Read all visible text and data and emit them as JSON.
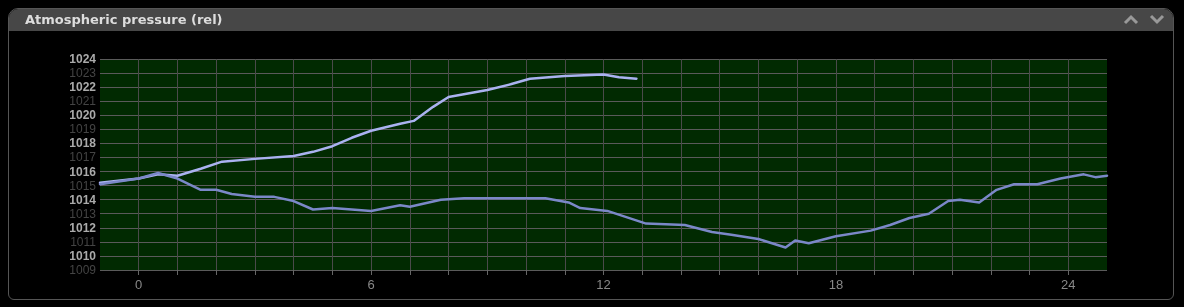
{
  "chart_data": {
    "type": "line",
    "title": "Atmospheric pressure (rel)",
    "xlim": [
      -1,
      25
    ],
    "xticks": [
      0,
      {
        "value": 1,
        "label": null
      },
      {
        "value": 2,
        "label": null
      },
      {
        "value": 3,
        "label": null
      },
      {
        "value": 4,
        "label": null
      },
      {
        "value": 5,
        "label": null
      },
      6,
      {
        "value": 7,
        "label": null
      },
      {
        "value": 8,
        "label": null
      },
      {
        "value": 9,
        "label": null
      },
      {
        "value": 10,
        "label": null
      },
      {
        "value": 11,
        "label": null
      },
      12,
      {
        "value": 13,
        "label": null
      },
      {
        "value": 14,
        "label": null
      },
      {
        "value": 15,
        "label": null
      },
      {
        "value": 16,
        "label": null
      },
      {
        "value": 17,
        "label": null
      },
      18,
      {
        "value": 19,
        "label": null
      },
      {
        "value": 20,
        "label": null
      },
      {
        "value": 21,
        "label": null
      },
      {
        "value": 22,
        "label": null
      },
      {
        "value": 23,
        "label": null
      },
      24
    ],
    "ylim": [
      1009,
      1024
    ],
    "yticks": [
      1009,
      1010,
      1011,
      1012,
      1013,
      1014,
      1015,
      1016,
      1017,
      1018,
      1019,
      1020,
      1021,
      1022,
      1023,
      1024
    ],
    "grid": true,
    "marker": "none",
    "line_style": "solid",
    "series": [
      {
        "color": "#aab2f0",
        "x": [
          -1,
          0,
          0.5,
          1,
          1.6,
          2.15,
          3,
          4,
          4.5,
          5,
          5.5,
          6,
          6.75,
          7.1,
          7.6,
          8,
          9,
          9.6,
          10.1,
          11,
          12,
          12.4,
          12.85
        ],
        "values": [
          1015.2,
          1015.5,
          1015.8,
          1015.7,
          1016.2,
          1016.7,
          1016.9,
          1017.1,
          1017.4,
          1017.8,
          1018.4,
          1018.9,
          1019.4,
          1019.6,
          1020.6,
          1021.3,
          1021.8,
          1022.2,
          1022.6,
          1022.8,
          1022.9,
          1022.7,
          1022.6
        ]
      },
      {
        "color": "#7b88c8",
        "x": [
          -1,
          0,
          0.5,
          1,
          1.6,
          2,
          2.4,
          3,
          3.5,
          4,
          4.5,
          5,
          5.5,
          6,
          6.75,
          7,
          7.8,
          8.4,
          9.7,
          10.5,
          11.1,
          11.4,
          12.1,
          13.1,
          14.1,
          14.8,
          15.3,
          16,
          16.7,
          16.95,
          17.3,
          18,
          18.9,
          19.4,
          19.9,
          20.4,
          20.9,
          21.2,
          21.7,
          22.15,
          22.6,
          23.2,
          23.8,
          24.4,
          24.7,
          25
        ],
        "values": [
          1015.1,
          1015.5,
          1015.9,
          1015.5,
          1014.7,
          1014.7,
          1014.4,
          1014.2,
          1014.2,
          1013.9,
          1013.3,
          1013.4,
          1013.3,
          1013.2,
          1013.6,
          1013.5,
          1014.0,
          1014.1,
          1014.1,
          1014.1,
          1013.8,
          1013.4,
          1013.2,
          1012.3,
          1012.2,
          1011.7,
          1011.5,
          1011.2,
          1010.6,
          1011.1,
          1010.9,
          1011.4,
          1011.8,
          1012.2,
          1012.7,
          1013.0,
          1013.9,
          1014.0,
          1013.8,
          1014.7,
          1015.1,
          1015.1,
          1015.5,
          1015.8,
          1015.6,
          1015.7
        ]
      }
    ]
  }
}
